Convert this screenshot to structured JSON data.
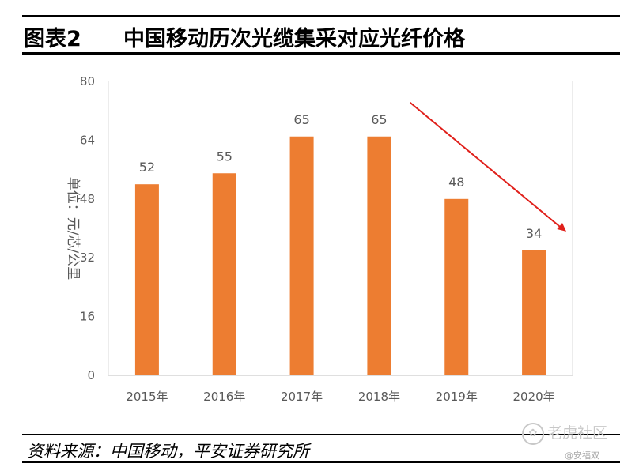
{
  "figure": {
    "number_label": "图表2",
    "title": "中国移动历次光缆集采对应光纤价格",
    "source": "资料来源：中国移动，平安证券研究所"
  },
  "watermark": {
    "brand": "老虎社区",
    "author": "@安福双",
    "logo_icon": "tiger-paw-icon"
  },
  "colors": {
    "bar": "#ed7d31",
    "trend_arrow": "#e0201b",
    "axis_text": "#595959",
    "axis_line": "#d9d9d9"
  },
  "chart_data": {
    "type": "bar",
    "categories": [
      "2015年",
      "2016年",
      "2017年",
      "2018年",
      "2019年",
      "2020年"
    ],
    "values": [
      52,
      55,
      65,
      65,
      48,
      34
    ],
    "value_labels": [
      "52",
      "55",
      "65",
      "65",
      "48",
      "34"
    ],
    "ylabel": "单位：元/芯/公里",
    "ylim": [
      0,
      80
    ],
    "yticks": [
      0,
      16,
      32,
      48,
      64,
      80
    ],
    "ytick_labels": [
      "0",
      "16",
      "32",
      "48",
      "64",
      "80"
    ],
    "grid": false,
    "legend": "none",
    "annotation": "downward trend arrow from 2018 to 2020"
  }
}
